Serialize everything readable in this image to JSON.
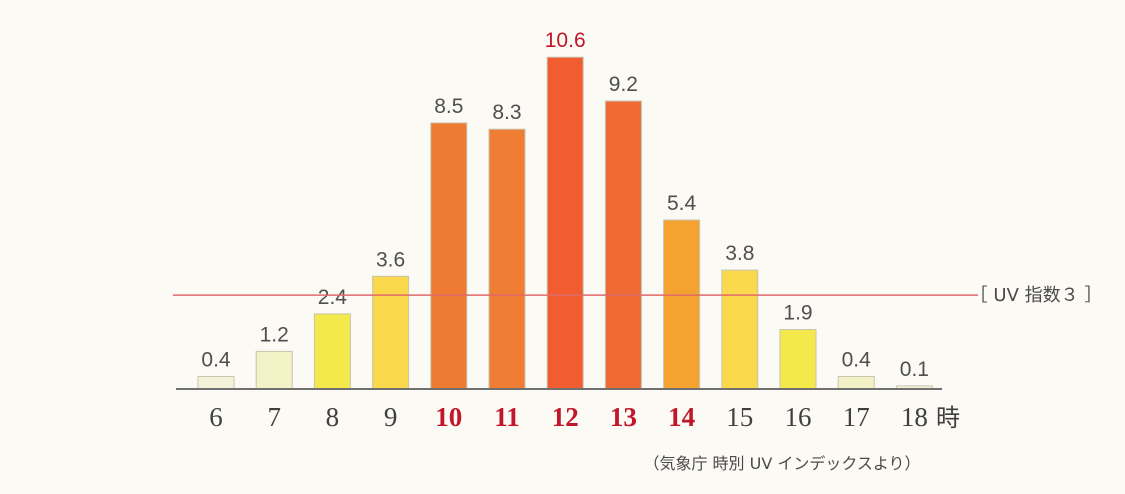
{
  "chart_data": {
    "type": "bar",
    "categories": [
      "6",
      "7",
      "8",
      "9",
      "10",
      "11",
      "12",
      "13",
      "14",
      "15",
      "16",
      "17",
      "18"
    ],
    "values": [
      0.4,
      1.2,
      2.4,
      3.6,
      8.5,
      8.3,
      10.6,
      9.2,
      5.4,
      3.8,
      1.9,
      0.4,
      0.1
    ],
    "value_labels": [
      "0.4",
      "1.2",
      "2.4",
      "3.6",
      "8.5",
      "8.3",
      "10.6",
      "9.2",
      "5.4",
      "3.8",
      "1.9",
      "0.4",
      "0.1"
    ],
    "bar_colors": [
      "#f4f3da",
      "#f3f1c6",
      "#f4e94a",
      "#fad84b",
      "#ee7b31",
      "#ef7d33",
      "#f15d31",
      "#f06a34",
      "#f4a230",
      "#fad94c",
      "#f4e94a",
      "#f3f1c6",
      "#f4f3da"
    ],
    "highlight_categories": [
      "10",
      "11",
      "12",
      "13",
      "14"
    ],
    "highlight_color": "#c0172b",
    "peak_value_label": "10.6",
    "x_unit": "時",
    "reference_line": {
      "value": 3,
      "label": "［ UV 指数３ ］",
      "color": "#e06a6a"
    },
    "source_note": "（気象庁 時別 UV インデックスより）",
    "ylim": [
      0,
      11.1
    ],
    "xlabel": "",
    "ylabel": "",
    "title": "",
    "grid": false,
    "legend": "none"
  }
}
